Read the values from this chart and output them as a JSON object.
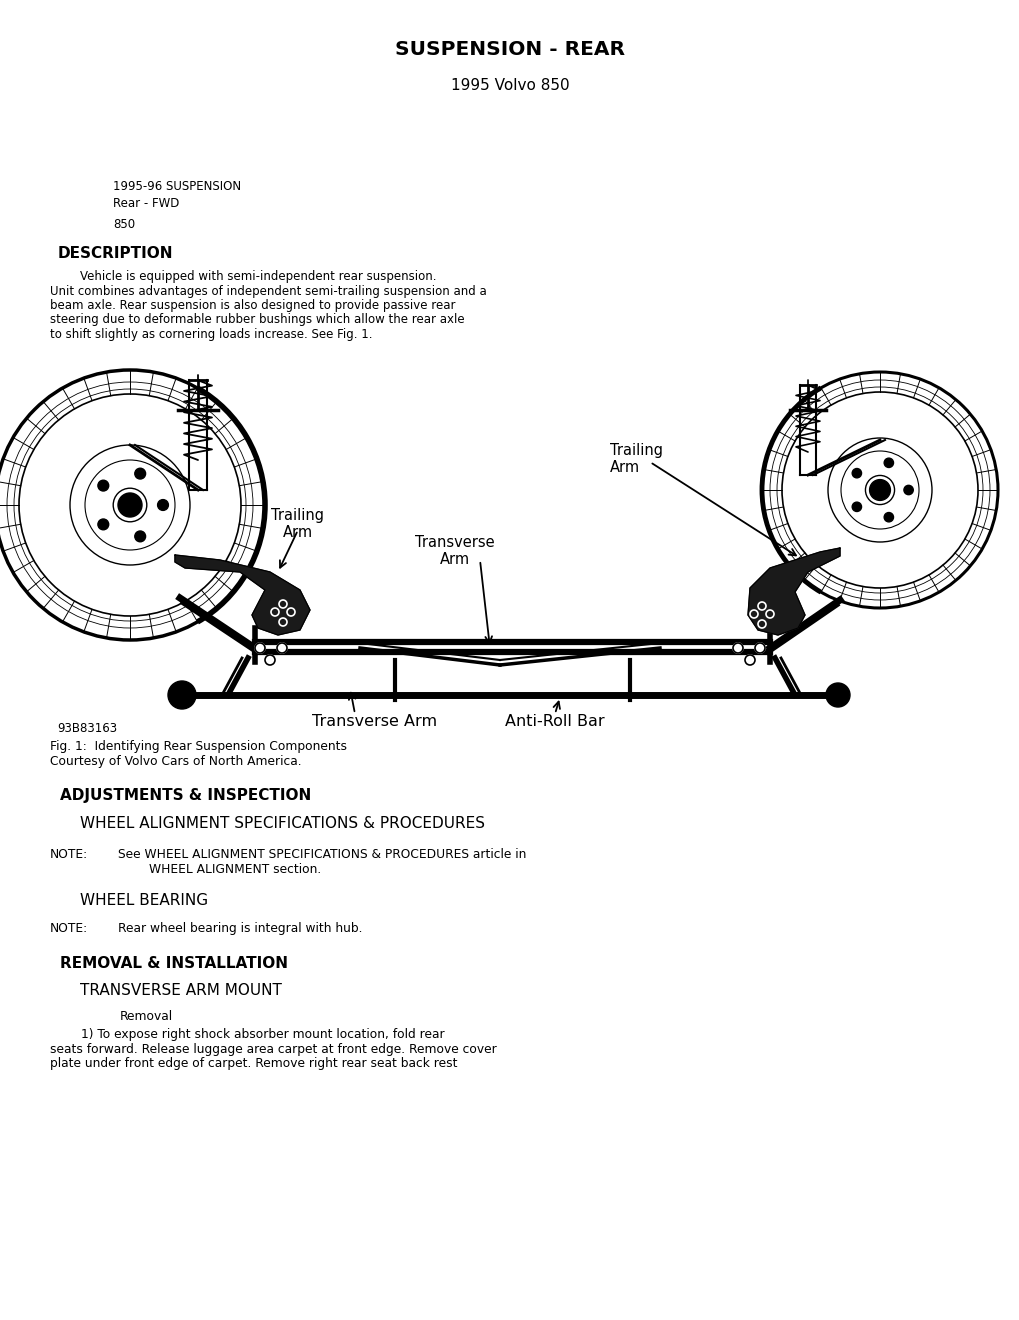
{
  "title": "SUSPENSION - REAR",
  "subtitle": "1995 Volvo 850",
  "bg_color": "#ffffff",
  "text_color": "#000000",
  "header_meta_line1": "1995-96 SUSPENSION",
  "header_meta_line2": "Rear - FWD",
  "header_meta_line3": "850",
  "section1_heading": "DESCRIPTION",
  "description_indent": "        Vehicle is equipped with semi-independent rear suspension.",
  "description_lines": [
    "        Vehicle is equipped with semi-independent rear suspension.",
    "Unit combines advantages of independent semi-trailing suspension and a",
    "beam axle. Rear suspension is also designed to provide passive rear",
    "steering due to deformable rubber bushings which allow the rear axle",
    "to shift slightly as cornering loads increase. See Fig. 1."
  ],
  "fig_code": "93B83163",
  "fig_caption_line1": "Fig. 1:  Identifying Rear Suspension Components",
  "fig_caption_line2": "Courtesy of Volvo Cars of North America.",
  "label_trailing_arm_right": "Trailing\nArm",
  "label_trailing_arm_left": "Trailing\nArm",
  "label_transverse_arm_mid": "Transverse\nArm",
  "label_transverse_arm_bot": "Transverse Arm",
  "label_antiroll_bar": "Anti-Roll Bar",
  "section2_heading": "ADJUSTMENTS & INSPECTION",
  "subsection2_1": "WHEEL ALIGNMENT SPECIFICATIONS & PROCEDURES",
  "note1_label": "NOTE:",
  "note1_line1": "See WHEEL ALIGNMENT SPECIFICATIONS & PROCEDURES article in",
  "note1_line2": "        WHEEL ALIGNMENT section.",
  "subsection2_2": "WHEEL BEARING",
  "note2_label": "NOTE:",
  "note2_text": "Rear wheel bearing is integral with hub.",
  "section3_heading": "REMOVAL & INSTALLATION",
  "subsection3_1": "TRANSVERSE ARM MOUNT",
  "removal_label": "Removal",
  "removal_lines": [
    "        1) To expose right shock absorber mount location, fold rear",
    "seats forward. Release luggage area carpet at front edge. Remove cover",
    "plate under front edge of carpet. Remove right rear seat back rest"
  ]
}
